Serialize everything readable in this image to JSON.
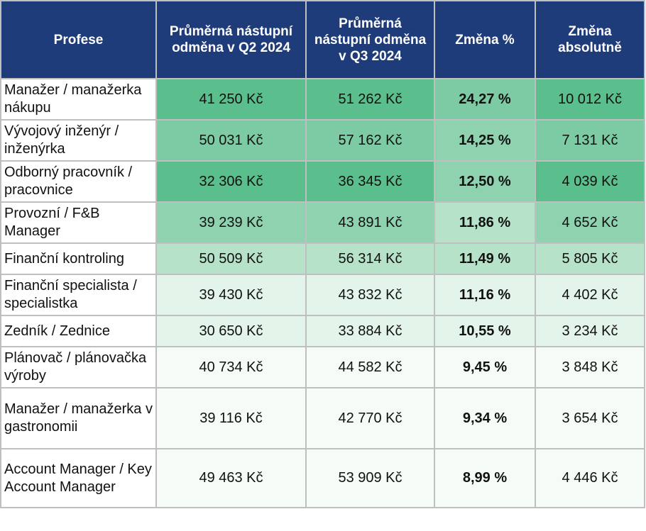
{
  "header": {
    "col1": "Profese",
    "col2": "Průměrná nástupní odměna v Q2 2024",
    "col3": "Průměrná nástupní odměna v Q3 2024",
    "col4": "Změna %",
    "col5": "Změna absolutně"
  },
  "rows": [
    {
      "name": "Manažer / manažerka nákupu",
      "q2": "41 250 Kč",
      "q3": "51 262 Kč",
      "pct": "24,27 %",
      "abs": "10 012 Kč"
    },
    {
      "name": "Vývojový inženýr / inženýrka",
      "q2": "50 031 Kč",
      "q3": "57 162 Kč",
      "pct": "14,25 %",
      "abs": "7 131 Kč"
    },
    {
      "name": "Odborný pracovník / pracovnice",
      "q2": "32 306 Kč",
      "q3": "36 345 Kč",
      "pct": "12,50 %",
      "abs": "4 039 Kč"
    },
    {
      "name": "Provozní / F&B Manager",
      "q2": "39 239 Kč",
      "q3": "43 891 Kč",
      "pct": "11,86 %",
      "abs": "4 652 Kč"
    },
    {
      "name": "Finanční kontroling",
      "q2": "50 509 Kč",
      "q3": "56 314 Kč",
      "pct": "11,49 %",
      "abs": "5 805 Kč"
    },
    {
      "name": "Finanční specialista / specialistka",
      "q2": "39 430 Kč",
      "q3": "43 832 Kč",
      "pct": "11,16 %",
      "abs": "4 402 Kč"
    },
    {
      "name": "Zedník / Zednice",
      "q2": "30 650 Kč",
      "q3": "33 884 Kč",
      "pct": "10,55 %",
      "abs": "3 234 Kč"
    },
    {
      "name": "Plánovač / plánovačka výroby",
      "q2": "40 734 Kč",
      "q3": "44 582 Kč",
      "pct": "9,45 %",
      "abs": "3 848 Kč"
    },
    {
      "name": "Manažer / manažerka v gastronomii",
      "q2": "39 116 Kč",
      "q3": "42 770 Kč",
      "pct": "9,34 %",
      "abs": "3 654 Kč"
    },
    {
      "name": "Account Manager / Key Account Manager",
      "q2": "49 463 Kč",
      "q3": "53 909 Kč",
      "pct": "8,99 %",
      "abs": "4 446 Kč"
    }
  ],
  "colors": {
    "header_bg": "#1f3c7a",
    "header_text": "#ffffff",
    "grid_line": "#bfbfbf",
    "heat_scale": [
      "#5bbf8d",
      "#7dcba5",
      "#8ed2b0",
      "#b5e2c9",
      "#e3f4ea",
      "#f5fbf7"
    ]
  }
}
